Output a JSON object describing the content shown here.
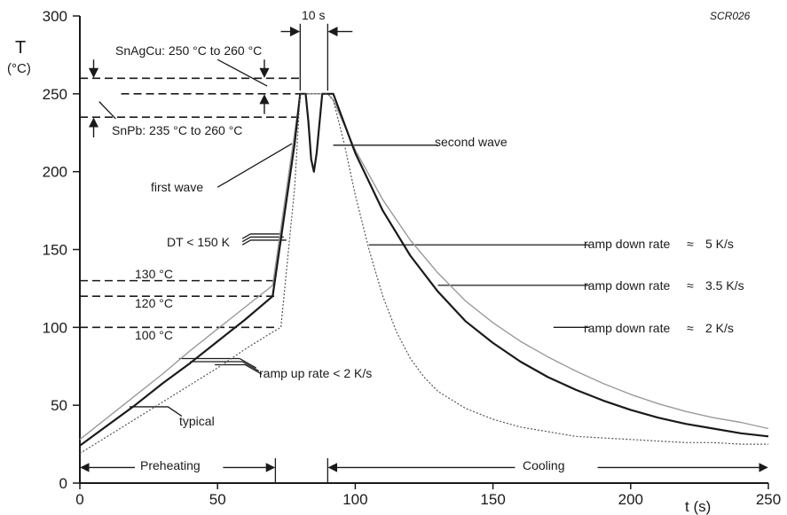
{
  "chart_data": {
    "type": "line",
    "code": "SCR026",
    "ylabel": "T",
    "yunit": "(°C)",
    "xlabel": "t (s)",
    "xlim": [
      0,
      250
    ],
    "ylim": [
      0,
      300
    ],
    "xticks": [
      0,
      50,
      100,
      150,
      200,
      250
    ],
    "yticks": [
      0,
      50,
      100,
      150,
      200,
      250,
      300
    ],
    "grid": false,
    "series": [
      {
        "style": "light-solid",
        "x": [
          0,
          10,
          20,
          30,
          40,
          50,
          60,
          70,
          78,
          80,
          81,
          82,
          90,
          92,
          100,
          110,
          120,
          130,
          140,
          150,
          160,
          170,
          180,
          190,
          200,
          210,
          220,
          230,
          240,
          250
        ],
        "y": [
          28,
          42,
          56,
          70,
          85,
          99,
          113,
          127,
          225,
          250,
          250,
          250,
          250,
          246,
          214,
          182,
          156,
          135,
          117,
          103,
          91,
          81,
          72,
          64,
          57,
          51,
          46,
          42,
          39,
          35
        ]
      },
      {
        "style": "dark-solid",
        "x": [
          0,
          10,
          20,
          30,
          40,
          50,
          60,
          70,
          78,
          80,
          81,
          82,
          83,
          84,
          85,
          86,
          88,
          90,
          92,
          100,
          110,
          120,
          130,
          140,
          150,
          160,
          170,
          180,
          190,
          200,
          210,
          220,
          230,
          240,
          250
        ],
        "y": [
          24,
          37,
          50,
          64,
          77,
          91,
          105,
          120,
          218,
          250,
          250,
          250,
          232,
          208,
          200,
          212,
          250,
          250,
          250,
          212,
          175,
          146,
          123,
          104,
          90,
          78,
          68,
          60,
          53,
          47,
          42,
          38,
          35,
          32,
          30
        ]
      },
      {
        "style": "dotted",
        "x": [
          0,
          10,
          20,
          30,
          40,
          50,
          60,
          70,
          73,
          78,
          80,
          81,
          82,
          90,
          92,
          96,
          100,
          105,
          110,
          115,
          120,
          125,
          130,
          140,
          150,
          160,
          170,
          180,
          190,
          200,
          210,
          220,
          230,
          240,
          250
        ],
        "y": [
          19,
          30,
          41,
          52,
          63,
          74,
          86,
          97,
          100,
          190,
          250,
          250,
          250,
          250,
          246,
          218,
          185,
          150,
          120,
          97,
          80,
          68,
          59,
          48,
          41,
          36,
          33,
          30,
          29,
          28,
          27,
          26,
          26,
          25,
          25
        ]
      }
    ],
    "annotations": {
      "snagcu": "SnAgCu: 250 °C  to  260 °C",
      "snpb": "SnPb: 235 °C  to  260 °C",
      "second_wave": "second wave",
      "first_wave": "first wave",
      "dt": "DT < 150 K",
      "t130": "130 °C",
      "t120": "120 °C",
      "t100": "100 °C",
      "ramp_up": "ramp up rate < 2 K/s",
      "typical": "typical",
      "ramp_down_5": "ramp down rate",
      "ramp_down_5_val": "5 K/s",
      "ramp_down_35": "ramp down rate",
      "ramp_down_35_val": "3.5 K/s",
      "ramp_down_2": "ramp down rate",
      "ramp_down_2_val": "2 K/s",
      "approx_symbol": "≈",
      "ten_s": "10 s",
      "preheating": "Preheating",
      "cooling": "Cooling"
    },
    "reference_levels": [
      260,
      250,
      235,
      130,
      120,
      100
    ]
  }
}
